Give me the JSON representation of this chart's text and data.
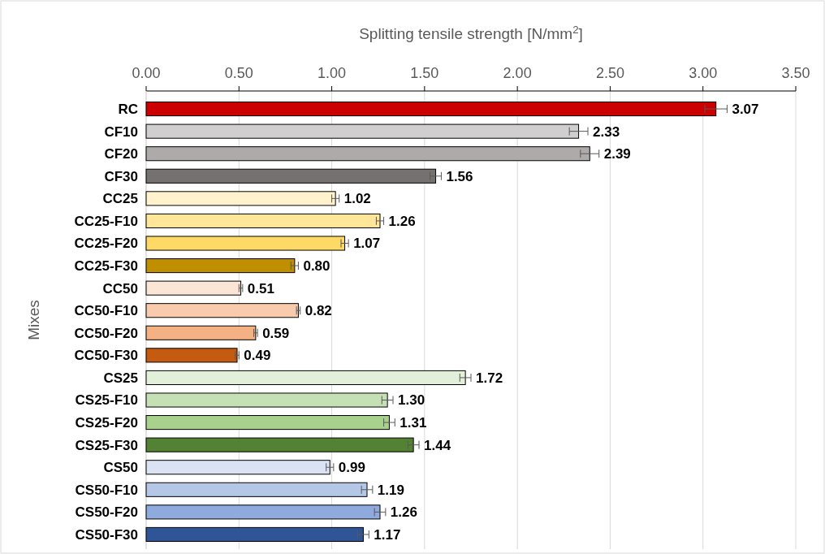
{
  "chart_data": {
    "type": "bar",
    "orientation": "horizontal",
    "xlabel": "Splitting tensile strength [N/mm$^{2}$]",
    "ylabel": "Mixes",
    "categories": [
      "RC",
      "CF10",
      "CF20",
      "CF30",
      "CC25",
      "CC25-F10",
      "CC25-F20",
      "CC25-F30",
      "CC50",
      "CC50-F10",
      "CC50-F20",
      "CC50-F30",
      "CS25",
      "CS25-F10",
      "CS25-F20",
      "CS25-F30",
      "CS50",
      "CS50-F10",
      "CS50-F20",
      "CS50-F30"
    ],
    "values": [
      3.07,
      2.33,
      2.39,
      1.56,
      1.02,
      1.26,
      1.07,
      0.8,
      0.51,
      0.82,
      0.59,
      0.49,
      1.72,
      1.3,
      1.31,
      1.44,
      0.99,
      1.19,
      1.26,
      1.17
    ],
    "errors": [
      0.06,
      0.05,
      0.05,
      0.03,
      0.02,
      0.02,
      0.02,
      0.02,
      0.01,
      0.01,
      0.01,
      0.01,
      0.03,
      0.03,
      0.03,
      0.03,
      0.02,
      0.03,
      0.03,
      0.03
    ],
    "colors": [
      "#cc0000",
      "#d0cece",
      "#aeaaaa",
      "#767171",
      "#fff2cc",
      "#ffe699",
      "#ffd966",
      "#bf8f00",
      "#fbe5d6",
      "#f8cbad",
      "#f4b183",
      "#c55a11",
      "#e2f0d9",
      "#c5e0b4",
      "#a9d18e",
      "#548235",
      "#dae3f3",
      "#b4c7e7",
      "#8faadc",
      "#2f5597"
    ],
    "xlim": [
      0,
      3.5
    ],
    "xticks": [
      {
        "value": 0,
        "label": "0.00"
      },
      {
        "value": 0.5,
        "label": "0.50"
      },
      {
        "value": 1,
        "label": "1.00"
      },
      {
        "value": 1.5,
        "label": "1.50"
      },
      {
        "value": 2,
        "label": "2.00"
      },
      {
        "value": 2.5,
        "label": "2.50"
      },
      {
        "value": 3,
        "label": "3.00"
      },
      {
        "value": 3.5,
        "label": "3.50"
      }
    ],
    "value_labels": [
      "3.07",
      "2.33",
      "2.39",
      "1.56",
      "1.02",
      "1.26",
      "1.07",
      "0.80",
      "0.51",
      "0.82",
      "0.59",
      "0.49",
      "1.72",
      "1.30",
      "1.31",
      "1.44",
      "0.99",
      "1.19",
      "1.26",
      "1.17"
    ],
    "grid": "x"
  }
}
